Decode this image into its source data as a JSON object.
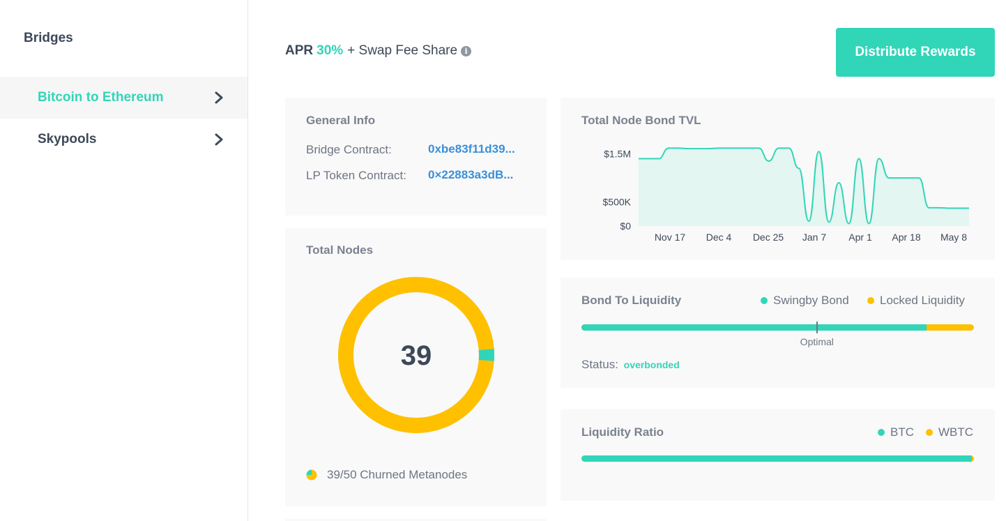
{
  "sidebar": {
    "title": "Bridges",
    "items": [
      {
        "label": "Bitcoin to Ethereum",
        "active": true
      },
      {
        "label": "Skypools",
        "active": false
      }
    ]
  },
  "header": {
    "apr_label": "APR",
    "apr_value": "30%",
    "apr_suffix": "+ Swap Fee Share",
    "distribute_button": "Distribute Rewards"
  },
  "general_info": {
    "title": "General Info",
    "bridge_contract_label": "Bridge Contract:",
    "bridge_contract_value": "0xbe83f11d39...",
    "lp_token_label": "LP Token Contract:",
    "lp_token_value": "0×22883a3dB..."
  },
  "total_nodes": {
    "title": "Total Nodes",
    "count": "39",
    "churned_fraction": 0.025,
    "legend": "39/50 Churned Metanodes"
  },
  "tvl_chart": {
    "title": "Total Node Bond TVL"
  },
  "chart_data": {
    "type": "area",
    "title": "Total Node Bond TVL",
    "x_ticks": [
      "Nov 17",
      "Dec 4",
      "Dec 25",
      "Jan 7",
      "Apr 1",
      "Apr 18",
      "May 8"
    ],
    "y_ticks": [
      "$1.5M",
      "$500K",
      "$0"
    ],
    "ylim": [
      0,
      1800000
    ],
    "grid": false,
    "series": [
      {
        "values": [
          1400000,
          1400000,
          1400000,
          1620000,
          1620000,
          1610000,
          1610000,
          1610000,
          1620000,
          1620000,
          1620000,
          1620000,
          1620000,
          1350000,
          1620000,
          1620000,
          1200000,
          100000,
          1550000,
          80000,
          900000,
          50000,
          1400000,
          50000,
          1400000,
          1000000,
          1000000,
          1000000,
          1000000,
          380000,
          380000,
          370000,
          370000,
          370000
        ]
      }
    ]
  },
  "bond_liquidity": {
    "title": "Bond To Liquidity",
    "legend_a": "Swingby Bond",
    "legend_b": "Locked Liquidity",
    "bond_fraction": 0.88,
    "optimal_fraction": 0.6,
    "optimal_label": "Optimal",
    "status_label": "Status:",
    "status_value": "overbonded"
  },
  "liquidity_ratio": {
    "title": "Liquidity Ratio",
    "legend_a": "BTC",
    "legend_b": "WBTC",
    "btc_fraction": 0.995
  },
  "colors": {
    "accent": "#31d5b8",
    "secondary": "#ffc000",
    "link": "#3a8fd8"
  }
}
